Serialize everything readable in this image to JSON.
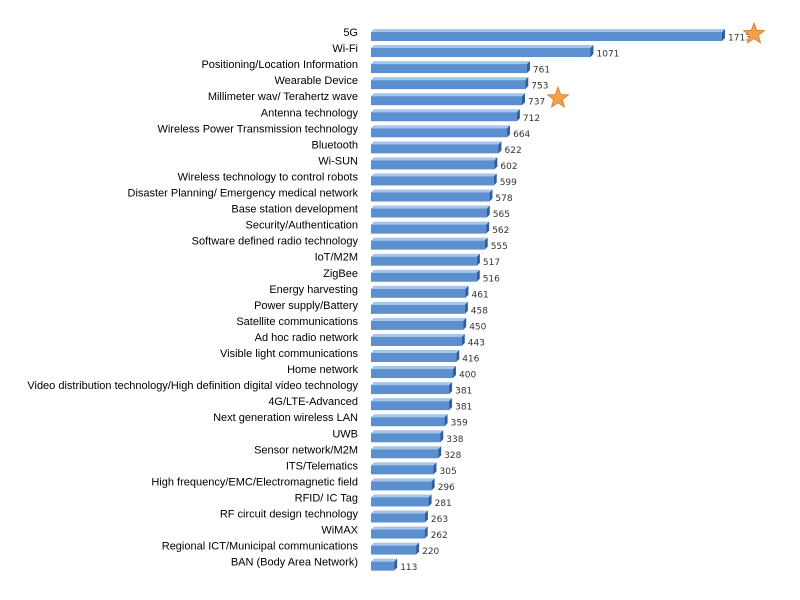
{
  "chart_data": {
    "type": "bar",
    "orientation": "horizontal",
    "title": "",
    "xlabel": "",
    "ylabel": "",
    "grid": false,
    "legend": "none",
    "xlim": [
      0,
      1713
    ],
    "categories": [
      "5G",
      "Wi-Fi",
      "Positioning/Location Information",
      "Wearable Device",
      "Millimeter wav/ Terahertz wave",
      "Antenna technology",
      "Wireless Power Transmission technology",
      "Bluetooth",
      "Wi-SUN",
      "Wireless technology to control robots",
      "Disaster Planning/ Emergency medical network",
      "Base station development",
      "Security/Authentication",
      "Software defined radio technology",
      "IoT/M2M",
      "ZigBee",
      "Energy harvesting",
      "Power supply/Battery",
      "Satellite communications",
      "Ad hoc radio network",
      "Visible light communications",
      "Home network",
      "Video distribution technology/High definition digital video technology",
      "4G/LTE-Advanced",
      "Next generation wireless LAN",
      "UWB",
      "Sensor network/M2M",
      "ITS/Telematics",
      "High frequency/EMC/Electromagnetic field",
      "RFID/ IC Tag",
      "RF circuit design technology",
      "WiMAX",
      "Regional ICT/Municipal communications",
      "BAN (Body Area Network)"
    ],
    "values": [
      1713,
      1071,
      761,
      753,
      737,
      712,
      664,
      622,
      602,
      599,
      578,
      565,
      562,
      555,
      517,
      516,
      461,
      458,
      450,
      443,
      416,
      400,
      381,
      381,
      359,
      338,
      328,
      305,
      296,
      281,
      263,
      262,
      220,
      113
    ],
    "highlighted": [
      "5G",
      "Millimeter wav/ Terahertz wave"
    ],
    "colors": {
      "bar_front": "#5b8fd0",
      "bar_top": "#a6c5ea",
      "bar_side": "#2f5f9e",
      "star": "#f5a04a",
      "star_edge": "#e07a20"
    }
  }
}
